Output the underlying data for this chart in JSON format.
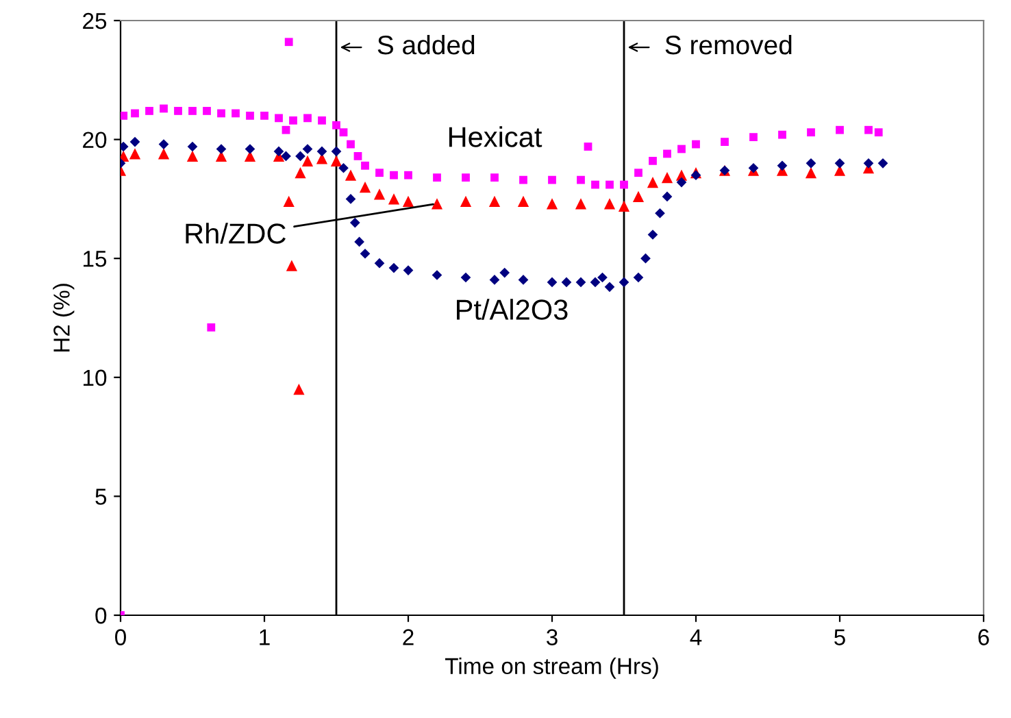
{
  "chart_data": {
    "type": "scatter",
    "xlabel": "Time on stream (Hrs)",
    "ylabel": "H2 (%)",
    "xlim": [
      0,
      6
    ],
    "xticks": [
      0,
      1,
      2,
      3,
      4,
      5,
      6
    ],
    "ylim": [
      0,
      25
    ],
    "yticks": [
      0,
      5,
      10,
      15,
      20,
      25
    ],
    "grid": false,
    "legend": false,
    "series": [
      {
        "name": "Hexicat",
        "color": "#ff00ff",
        "marker": "square",
        "x": [
          0,
          0.02,
          0.1,
          0.2,
          0.3,
          0.4,
          0.5,
          0.6,
          0.63,
          0.7,
          0.8,
          0.9,
          1.0,
          1.1,
          1.15,
          1.17,
          1.2,
          1.3,
          1.4,
          1.5,
          1.55,
          1.6,
          1.65,
          1.7,
          1.8,
          1.9,
          2.0,
          2.2,
          2.4,
          2.6,
          2.8,
          3.0,
          3.2,
          3.25,
          3.3,
          3.4,
          3.5,
          3.6,
          3.7,
          3.8,
          3.9,
          4.0,
          4.2,
          4.4,
          4.6,
          4.8,
          5.0,
          5.2,
          5.27
        ],
        "values": [
          0,
          21.0,
          21.1,
          21.2,
          21.3,
          21.2,
          21.2,
          21.2,
          12.1,
          21.1,
          21.1,
          21.0,
          21.0,
          20.9,
          20.4,
          24.1,
          20.8,
          20.9,
          20.8,
          20.6,
          20.3,
          19.8,
          19.3,
          18.9,
          18.6,
          18.5,
          18.5,
          18.4,
          18.4,
          18.4,
          18.3,
          18.3,
          18.3,
          19.7,
          18.1,
          18.1,
          18.1,
          18.6,
          19.1,
          19.4,
          19.6,
          19.8,
          19.9,
          20.1,
          20.2,
          20.3,
          20.4,
          20.4,
          20.3
        ]
      },
      {
        "name": "Rh/ZDC",
        "color": "#ff0000",
        "marker": "triangle",
        "x": [
          0,
          0.02,
          0.1,
          0.3,
          0.5,
          0.7,
          0.9,
          1.1,
          1.17,
          1.19,
          1.24,
          1.25,
          1.3,
          1.4,
          1.5,
          1.6,
          1.7,
          1.8,
          1.9,
          2.0,
          2.2,
          2.4,
          2.6,
          2.8,
          3.0,
          3.2,
          3.4,
          3.5,
          3.6,
          3.7,
          3.8,
          3.9,
          4.0,
          4.2,
          4.4,
          4.6,
          4.8,
          5.0,
          5.2
        ],
        "values": [
          18.7,
          19.3,
          19.4,
          19.4,
          19.3,
          19.3,
          19.3,
          19.3,
          17.4,
          14.7,
          9.5,
          18.6,
          19.1,
          19.2,
          19.1,
          18.5,
          18.0,
          17.7,
          17.5,
          17.4,
          17.3,
          17.4,
          17.4,
          17.4,
          17.3,
          17.3,
          17.3,
          17.2,
          17.6,
          18.2,
          18.4,
          18.5,
          18.6,
          18.7,
          18.7,
          18.7,
          18.6,
          18.7,
          18.8
        ]
      },
      {
        "name": "Pt/Al2O3",
        "color": "#000080",
        "marker": "diamond",
        "x": [
          0,
          0.02,
          0.1,
          0.3,
          0.5,
          0.7,
          0.9,
          1.1,
          1.15,
          1.25,
          1.3,
          1.4,
          1.5,
          1.55,
          1.6,
          1.63,
          1.66,
          1.7,
          1.8,
          1.9,
          2.0,
          2.2,
          2.4,
          2.6,
          2.67,
          2.8,
          3.0,
          3.1,
          3.2,
          3.3,
          3.35,
          3.4,
          3.5,
          3.6,
          3.65,
          3.7,
          3.75,
          3.8,
          3.9,
          4.0,
          4.2,
          4.4,
          4.6,
          4.8,
          5.0,
          5.2,
          5.3
        ],
        "values": [
          19.0,
          19.7,
          19.9,
          19.8,
          19.7,
          19.6,
          19.6,
          19.5,
          19.3,
          19.3,
          19.6,
          19.5,
          19.5,
          18.8,
          17.5,
          16.5,
          15.7,
          15.2,
          14.8,
          14.6,
          14.5,
          14.3,
          14.2,
          14.1,
          14.4,
          14.1,
          14.0,
          14.0,
          14.0,
          14.0,
          14.2,
          13.8,
          14.0,
          14.2,
          15.0,
          16.0,
          16.9,
          17.6,
          18.2,
          18.5,
          18.7,
          18.8,
          18.9,
          19.0,
          19.0,
          19.0,
          19.0
        ]
      }
    ],
    "ref_lines": [
      {
        "axis": "x",
        "value": 1.5,
        "label": "S added",
        "color": "#000000"
      },
      {
        "axis": "x",
        "value": 3.5,
        "label": "S removed",
        "color": "#000000"
      }
    ]
  }
}
